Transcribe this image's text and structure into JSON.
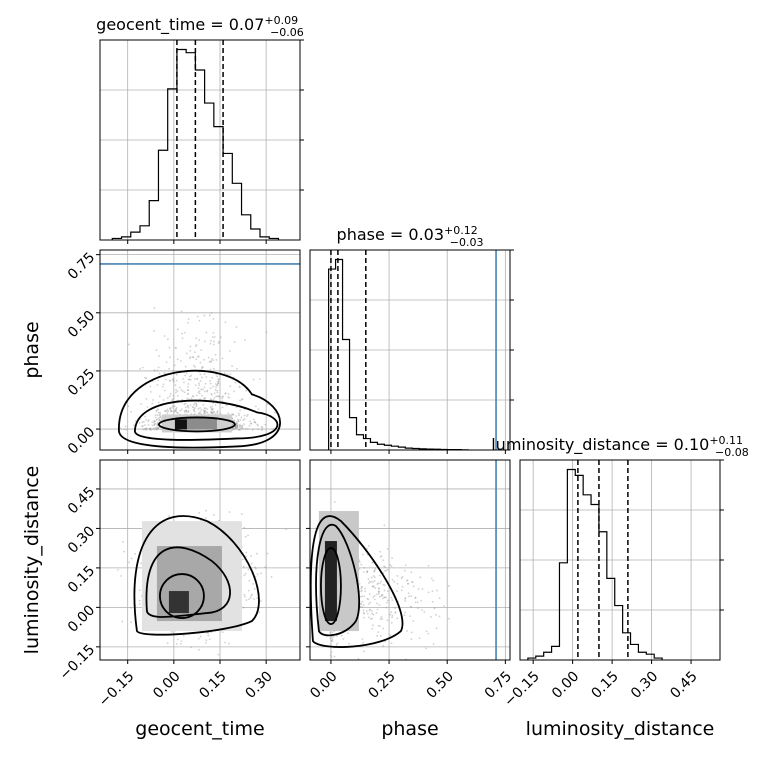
{
  "chart_data": {
    "type": "corner",
    "parameters": [
      "geocent_time",
      "phase",
      "luminosity_distance"
    ],
    "titles": [
      {
        "param": "geocent_time",
        "label": "geocent_time",
        "median": "0.07",
        "plus": "+0.09",
        "minus": "−0.06"
      },
      {
        "param": "phase",
        "label": "phase",
        "median": "0.03",
        "plus": "+0.12",
        "minus": "−0.03"
      },
      {
        "param": "luminosity_distance",
        "label": "luminosity_distance",
        "median": "0.10",
        "plus": "+0.11",
        "minus": "−0.08"
      }
    ],
    "axis_labels": {
      "x": [
        "geocent_time",
        "phase",
        "luminosity_distance"
      ],
      "y": [
        "phase",
        "luminosity_distance"
      ]
    },
    "ranges": {
      "geocent_time": [
        -0.24,
        0.41
      ],
      "phase": [
        -0.09,
        0.77
      ],
      "luminosity_distance": [
        -0.2,
        0.56
      ]
    },
    "ticks": {
      "geocent_time": {
        "values": [
          -0.15,
          0.0,
          0.15,
          0.3
        ],
        "labels": [
          "−0.15",
          "0.00",
          "0.15",
          "0.30"
        ]
      },
      "phase": {
        "values": [
          0.0,
          0.25,
          0.5,
          0.75
        ],
        "labels": [
          "0.00",
          "0.25",
          "0.50",
          "0.75"
        ]
      },
      "luminosity_distance": {
        "values": [
          -0.15,
          0.0,
          0.15,
          0.3,
          0.45
        ],
        "labels": [
          "−0.15",
          "0.00",
          "0.15",
          "0.30",
          "0.45"
        ]
      }
    },
    "quantiles": {
      "geocent_time": [
        0.01,
        0.07,
        0.16
      ],
      "phase": [
        0.0,
        0.03,
        0.15
      ],
      "luminosity_distance": [
        0.02,
        0.1,
        0.21
      ]
    },
    "truths": {
      "phase": 0.71
    },
    "histograms": {
      "geocent_time": {
        "bin_start": -0.2,
        "bin_width": 0.03,
        "counts": [
          1,
          2,
          5,
          9,
          25,
          57,
          96,
          121,
          119,
          108,
          87,
          72,
          55,
          36,
          16,
          7,
          2,
          1
        ]
      },
      "phase": {
        "bin_start": -0.01,
        "bin_width": 0.03,
        "counts": [
          95,
          100,
          58,
          17,
          8,
          6,
          4,
          3,
          2.5,
          2,
          1.5,
          1,
          0.8,
          0.6,
          0.5,
          0.4,
          0.3,
          0.2,
          0.2,
          0.1
        ]
      },
      "luminosity_distance": {
        "bin_start": -0.17,
        "bin_width": 0.03,
        "counts": [
          1,
          2,
          4,
          7,
          50,
          98,
          95,
          85,
          80,
          66,
          42,
          28,
          14,
          8,
          4,
          3,
          1
        ]
      }
    },
    "grid": true
  }
}
